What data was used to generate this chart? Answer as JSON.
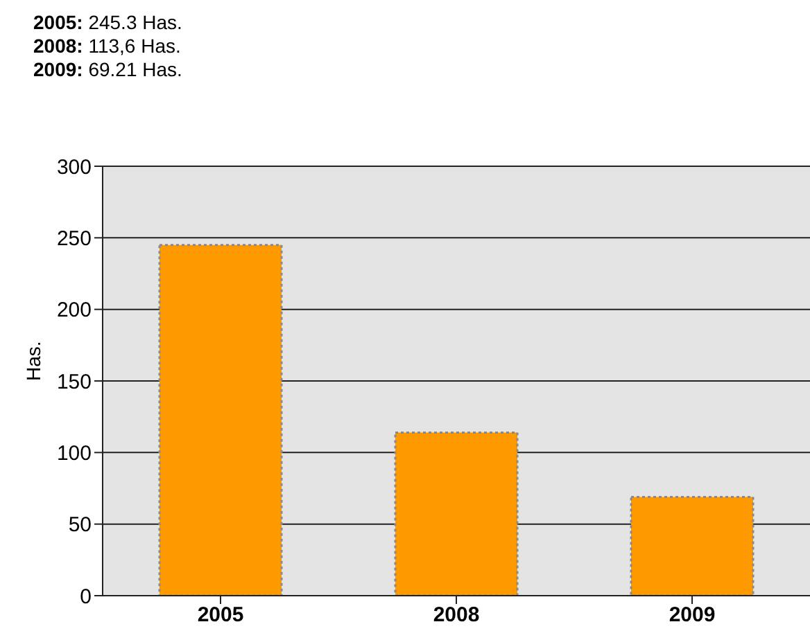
{
  "chart_data": {
    "type": "bar",
    "annotations": [
      "2005: 245.3 Has.",
      "2008: 113,6 Has.",
      "2009: 69.21 Has."
    ],
    "ylabel": "Has.",
    "categories": [
      "2005",
      "2008",
      "2009"
    ],
    "values": [
      245,
      114,
      69
    ],
    "color": "#ff9900",
    "ylim": [
      0,
      300
    ],
    "yticks": [
      0,
      50,
      100,
      150,
      200,
      250,
      300
    ],
    "grid": "y"
  }
}
